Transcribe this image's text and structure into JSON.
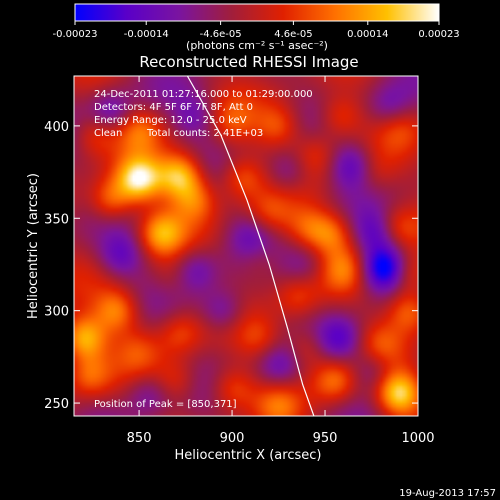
{
  "chart_data": {
    "type": "heatmap",
    "title": "Reconstructed RHESSI Image",
    "xlabel": "Heliocentric X (arcsec)",
    "ylabel": "Heliocentric Y (arcsec)",
    "xlim": [
      815,
      1000
    ],
    "ylim": [
      243,
      427
    ],
    "x_ticks": [
      850,
      900,
      950,
      1000
    ],
    "y_ticks": [
      250,
      300,
      350,
      400
    ],
    "colorbar": {
      "ticks": [
        "-0.00023",
        "-0.00014",
        "-4.6e-05",
        "4.6e-05",
        "0.00014",
        "0.00023"
      ],
      "tick_values": [
        -0.00023,
        -0.00014,
        -4.6e-05,
        4.6e-05,
        0.00014,
        0.00023
      ],
      "range": [
        -0.00023,
        0.00023
      ],
      "units_label": "(photons cm⁻² s⁻¹ asec⁻²)",
      "colors": [
        "#0000ff",
        "#5a00c8",
        "#7a14a0",
        "#a01e3c",
        "#e02000",
        "#ff7000",
        "#ffc000",
        "#ffffff"
      ]
    },
    "annotations": [
      "24-Dec-2011 01:27:16.000 to 01:29:00.000",
      "Detectors: 4F 5F 6F 7F 8F, Att 0",
      "Energy Range: 12.0 - 25.0 keV",
      "Clean",
      "Total counts: 2.41E+03"
    ],
    "peak_label": "Position of Peak = [850,371]",
    "peak": {
      "x": 850,
      "y": 371
    },
    "limb_curve": [
      [
        876,
        427
      ],
      [
        894,
        395
      ],
      [
        908,
        360
      ],
      [
        920,
        325
      ],
      [
        930,
        290
      ],
      [
        938,
        260
      ],
      [
        944,
        243
      ]
    ],
    "hotspots": [
      {
        "x": 850,
        "y": 371,
        "v": 0.00023
      },
      {
        "x": 872,
        "y": 373,
        "v": 0.0002
      },
      {
        "x": 835,
        "y": 360,
        "v": 0.00014
      },
      {
        "x": 862,
        "y": 342,
        "v": 0.00016
      },
      {
        "x": 880,
        "y": 360,
        "v": 0.00012
      },
      {
        "x": 850,
        "y": 398,
        "v": 0.0001
      },
      {
        "x": 826,
        "y": 395,
        "v": 9e-05
      },
      {
        "x": 905,
        "y": 372,
        "v": 0.00011
      },
      {
        "x": 925,
        "y": 400,
        "v": 0.0001
      },
      {
        "x": 945,
        "y": 385,
        "v": 8e-05
      },
      {
        "x": 958,
        "y": 405,
        "v": 0.0001
      },
      {
        "x": 990,
        "y": 400,
        "v": 6e-05
      },
      {
        "x": 920,
        "y": 352,
        "v": 8e-05
      },
      {
        "x": 940,
        "y": 345,
        "v": 9e-05
      },
      {
        "x": 953,
        "y": 342,
        "v": 0.00012
      },
      {
        "x": 988,
        "y": 345,
        "v": 0.00011
      },
      {
        "x": 960,
        "y": 322,
        "v": 9e-05
      },
      {
        "x": 995,
        "y": 320,
        "v": 0.00012
      },
      {
        "x": 995,
        "y": 300,
        "v": 0.00014
      },
      {
        "x": 935,
        "y": 307,
        "v": 8e-05
      },
      {
        "x": 915,
        "y": 285,
        "v": 7e-05
      },
      {
        "x": 872,
        "y": 288,
        "v": 9e-05
      },
      {
        "x": 850,
        "y": 278,
        "v": 6e-05
      },
      {
        "x": 838,
        "y": 300,
        "v": 0.00014
      },
      {
        "x": 820,
        "y": 285,
        "v": 0.0002
      },
      {
        "x": 823,
        "y": 265,
        "v": 0.00011
      },
      {
        "x": 870,
        "y": 262,
        "v": 8e-05
      },
      {
        "x": 900,
        "y": 258,
        "v": 0.0001
      },
      {
        "x": 955,
        "y": 262,
        "v": 0.00013
      },
      {
        "x": 990,
        "y": 255,
        "v": 0.00022
      },
      {
        "x": 940,
        "y": 280,
        "v": 9e-05
      },
      {
        "x": 980,
        "y": 282,
        "v": 7e-05
      },
      {
        "x": 915,
        "y": 328,
        "v": 6e-05
      },
      {
        "x": 868,
        "y": 318,
        "v": 5e-05
      },
      {
        "x": 900,
        "y": 402,
        "v": 7e-05
      },
      {
        "x": 975,
        "y": 375,
        "v": 6e-05
      },
      {
        "x": 925,
        "y": 248,
        "v": 8e-05
      },
      {
        "x": 982,
        "y": 323,
        "v": -0.00023
      },
      {
        "x": 978,
        "y": 342,
        "v": -0.00012
      },
      {
        "x": 965,
        "y": 378,
        "v": -0.00013
      },
      {
        "x": 840,
        "y": 330,
        "v": -0.00011
      },
      {
        "x": 835,
        "y": 408,
        "v": -0.0001
      },
      {
        "x": 880,
        "y": 322,
        "v": -0.0001
      },
      {
        "x": 895,
        "y": 300,
        "v": -0.00011
      },
      {
        "x": 925,
        "y": 270,
        "v": -0.0001
      },
      {
        "x": 958,
        "y": 285,
        "v": -0.00012
      },
      {
        "x": 930,
        "y": 375,
        "v": -9e-05
      },
      {
        "x": 910,
        "y": 340,
        "v": -8e-05
      },
      {
        "x": 880,
        "y": 405,
        "v": -8e-05
      },
      {
        "x": 985,
        "y": 410,
        "v": -9e-05
      },
      {
        "x": 855,
        "y": 255,
        "v": -8e-05
      },
      {
        "x": 975,
        "y": 268,
        "v": -9e-05
      },
      {
        "x": 940,
        "y": 325,
        "v": -7e-05
      }
    ]
  },
  "footer": {
    "timestamp": "19-Aug-2013 17:57"
  }
}
